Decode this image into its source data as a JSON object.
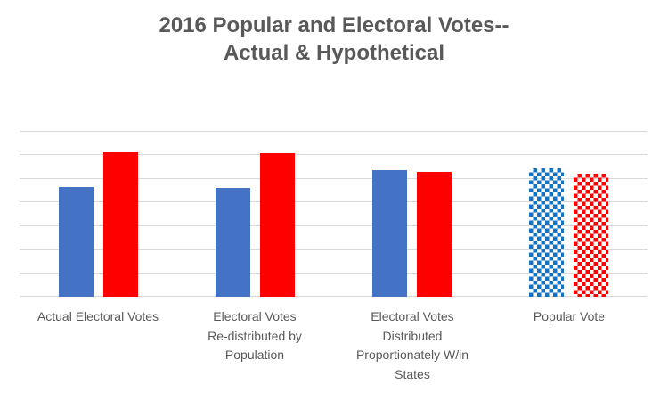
{
  "colors": {
    "background": "#FFFFFF",
    "title_text": "#595959",
    "axis_label_text": "#595959",
    "gridline": "#D9D9D9",
    "blue_solid": "#4472C4",
    "blue_checker": "#1673C4",
    "red_solid": "#FF0000",
    "red_checker": "#FF0000"
  },
  "chart_data": {
    "type": "bar",
    "title": "2016 Popular and Electoral Votes-- Actual & Hypothetical",
    "title_line1": "2016 Popular and Electoral Votes--",
    "title_line2": "Actual & Hypothetical",
    "categories": [
      "Actual Electoral Votes",
      "Electoral Votes\nRe-distributed by\nPopulation",
      "Electoral Votes\nDistributed\nProportionately W/in\nStates",
      "Popular Vote"
    ],
    "category_fill_pattern": [
      "solid",
      "solid",
      "solid",
      "checker"
    ],
    "series": [
      {
        "name": "blue",
        "color": "#4472C4",
        "checker_color": "#1673C4",
        "values": [
          232,
          231,
          268,
          273
        ]
      },
      {
        "name": "red",
        "color": "#FF0000",
        "checker_color": "#FF0000",
        "values": [
          306,
          304,
          265,
          262
        ]
      }
    ],
    "xlabel": "",
    "ylabel": "",
    "y_axis": {
      "min": 0,
      "max": 350,
      "gridline_step": 50,
      "tick_labels_visible": false
    },
    "grid": true,
    "legend_position": "none"
  }
}
